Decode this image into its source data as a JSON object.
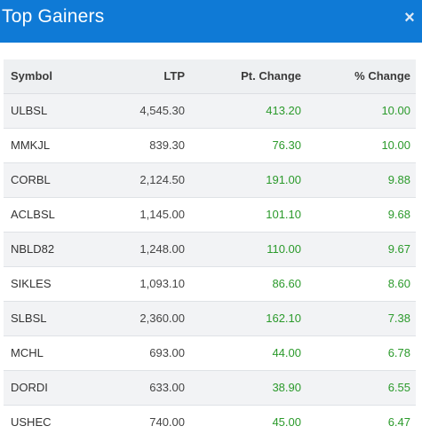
{
  "modal": {
    "title": "Top Gainers",
    "close_label": "×"
  },
  "colors": {
    "header_bg": "#0f7ad6",
    "positive": "#2b9a2b"
  },
  "table": {
    "columns": [
      "Symbol",
      "LTP",
      "Pt. Change",
      "% Change"
    ],
    "rows": [
      {
        "symbol": "ULBSL",
        "ltp": "4,545.30",
        "pt_change": "413.20",
        "pct_change": "10.00"
      },
      {
        "symbol": "MMKJL",
        "ltp": "839.30",
        "pt_change": "76.30",
        "pct_change": "10.00"
      },
      {
        "symbol": "CORBL",
        "ltp": "2,124.50",
        "pt_change": "191.00",
        "pct_change": "9.88"
      },
      {
        "symbol": "ACLBSL",
        "ltp": "1,145.00",
        "pt_change": "101.10",
        "pct_change": "9.68"
      },
      {
        "symbol": "NBLD82",
        "ltp": "1,248.00",
        "pt_change": "110.00",
        "pct_change": "9.67"
      },
      {
        "symbol": "SIKLES",
        "ltp": "1,093.10",
        "pt_change": "86.60",
        "pct_change": "8.60"
      },
      {
        "symbol": "SLBSL",
        "ltp": "2,360.00",
        "pt_change": "162.10",
        "pct_change": "7.38"
      },
      {
        "symbol": "MCHL",
        "ltp": "693.00",
        "pt_change": "44.00",
        "pct_change": "6.78"
      },
      {
        "symbol": "DORDI",
        "ltp": "633.00",
        "pt_change": "38.90",
        "pct_change": "6.55"
      },
      {
        "symbol": "USHEC",
        "ltp": "740.00",
        "pt_change": "45.00",
        "pct_change": "6.47"
      }
    ]
  }
}
